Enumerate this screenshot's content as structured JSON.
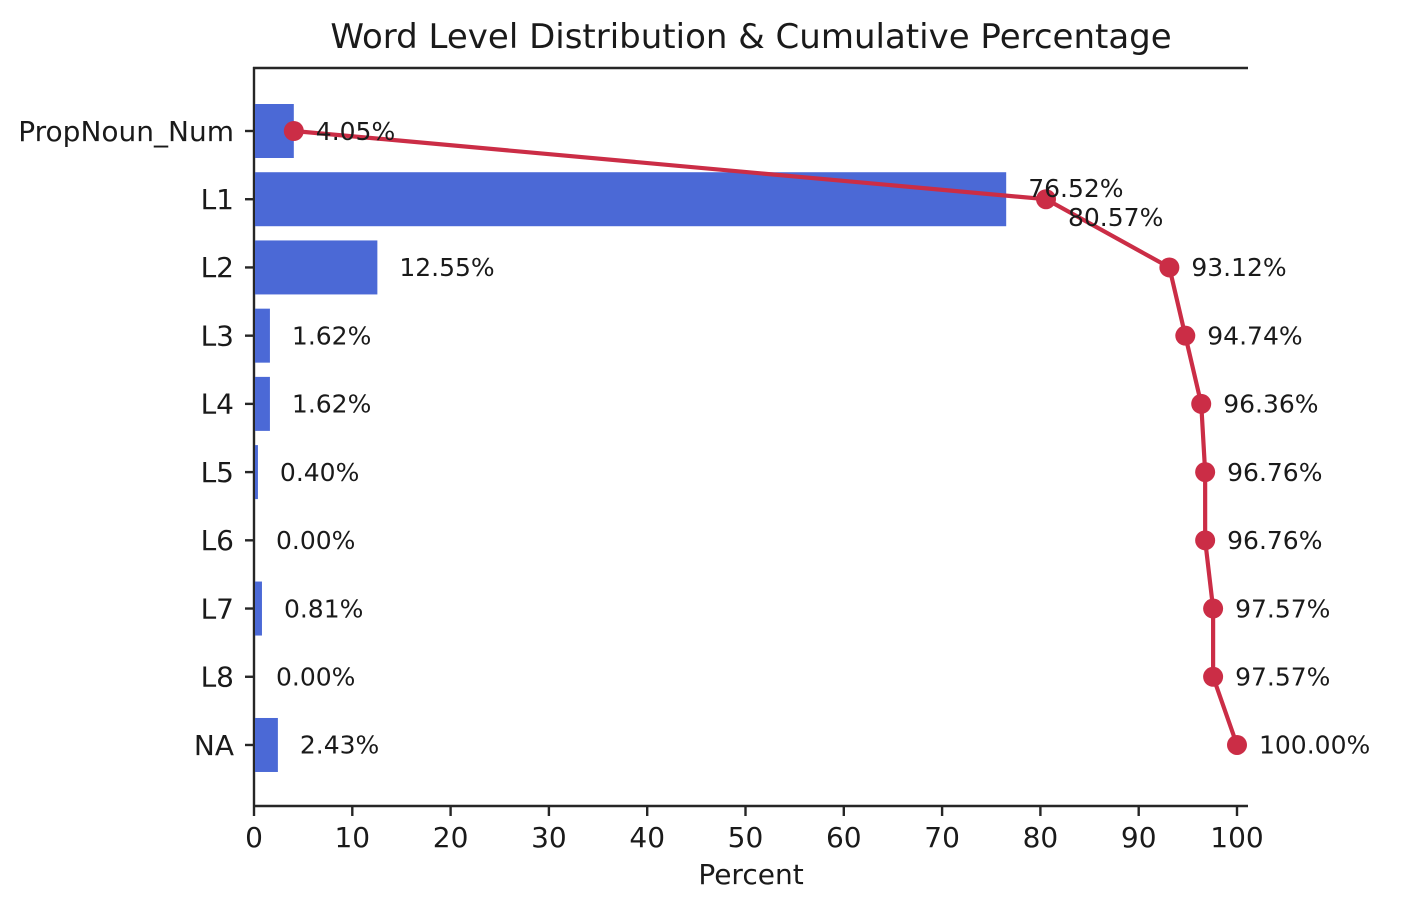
{
  "chart_data": {
    "type": "bar",
    "subtype": "horizontal-bar-with-cumulative-line",
    "title": "Word Level Distribution & Cumulative Percentage",
    "xlabel": "Percent",
    "ylabel": "",
    "categories": [
      "PropNoun_Num",
      "L1",
      "L2",
      "L3",
      "L4",
      "L5",
      "L6",
      "L7",
      "L8",
      "NA"
    ],
    "series": [
      {
        "name": "Word Level Distribution",
        "type": "bar",
        "color": "#4b69d6",
        "values": [
          4.05,
          76.52,
          12.55,
          1.62,
          1.62,
          0.4,
          0.0,
          0.81,
          0.0,
          2.43
        ],
        "labels": [
          "4.05%",
          "76.52%",
          "12.55%",
          "1.62%",
          "1.62%",
          "0.40%",
          "0.00%",
          "0.81%",
          "0.00%",
          "2.43%"
        ]
      },
      {
        "name": "Cumulative Percentage",
        "type": "line",
        "marker": "circle",
        "color": "#cb2d46",
        "values": [
          4.05,
          80.57,
          93.12,
          94.74,
          96.36,
          96.76,
          96.76,
          97.57,
          97.57,
          100.0
        ],
        "labels": [
          "4.05%",
          "80.57%",
          "93.12%",
          "94.74%",
          "96.36%",
          "96.76%",
          "96.76%",
          "97.57%",
          "97.57%",
          "100.00%"
        ]
      }
    ],
    "x_ticks": [
      "0",
      "10",
      "20",
      "30",
      "40",
      "50",
      "60",
      "70",
      "80",
      "90",
      "100"
    ],
    "xlim": [
      0,
      101
    ],
    "grid": false,
    "legend": "none",
    "colors": {
      "bar": "#4b69d6",
      "line": "#cb2d46",
      "text": "#1a1a1a",
      "axis": "#262626",
      "background": "#ffffff"
    }
  }
}
